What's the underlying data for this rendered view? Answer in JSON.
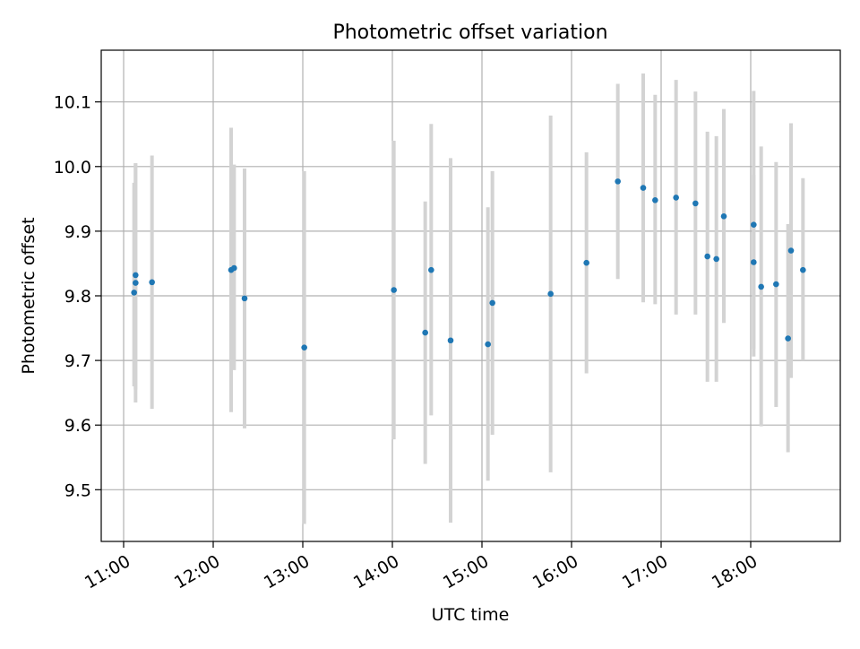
{
  "chart_data": {
    "type": "scatter",
    "title": "Photometric offset variation",
    "xlabel": "UTC time",
    "ylabel": "Photometric offset",
    "x_axis_kind": "time",
    "xlim": [
      "10:45",
      "19:00"
    ],
    "ylim": [
      9.42,
      10.18
    ],
    "x_ticks": [
      "11:00",
      "12:00",
      "13:00",
      "14:00",
      "15:00",
      "16:00",
      "17:00",
      "18:00"
    ],
    "y_ticks": [
      "9.5",
      "9.6",
      "9.7",
      "9.8",
      "9.9",
      "10.0",
      "10.1"
    ],
    "grid": true,
    "legend": "none",
    "colors": {
      "point": "#1f77b4",
      "errorbar": "#d3d3d3",
      "grid": "#b0b0b0"
    },
    "series": [
      {
        "points": [
          {
            "x": "11:07",
            "y": 9.805,
            "err_low": 9.66,
            "err_high": 9.975
          },
          {
            "x": "11:08",
            "y": 9.82,
            "err_low": 9.635,
            "err_high": 10.005
          },
          {
            "x": "11:08",
            "y": 9.832,
            "err_low": 9.655,
            "err_high": 10.005
          },
          {
            "x": "11:19",
            "y": 9.821,
            "err_low": 9.625,
            "err_high": 10.017
          },
          {
            "x": "12:12",
            "y": 9.84,
            "err_low": 9.62,
            "err_high": 10.06
          },
          {
            "x": "12:14",
            "y": 9.843,
            "err_low": 9.685,
            "err_high": 10.003
          },
          {
            "x": "12:21",
            "y": 9.796,
            "err_low": 9.595,
            "err_high": 9.997
          },
          {
            "x": "13:01",
            "y": 9.72,
            "err_low": 9.447,
            "err_high": 9.993
          },
          {
            "x": "14:01",
            "y": 9.809,
            "err_low": 9.578,
            "err_high": 10.04
          },
          {
            "x": "14:22",
            "y": 9.743,
            "err_low": 9.54,
            "err_high": 9.946
          },
          {
            "x": "14:26",
            "y": 9.84,
            "err_low": 9.615,
            "err_high": 10.066
          },
          {
            "x": "14:39",
            "y": 9.731,
            "err_low": 9.449,
            "err_high": 10.013
          },
          {
            "x": "15:04",
            "y": 9.725,
            "err_low": 9.514,
            "err_high": 9.937
          },
          {
            "x": "15:07",
            "y": 9.789,
            "err_low": 9.585,
            "err_high": 9.993
          },
          {
            "x": "15:46",
            "y": 9.803,
            "err_low": 9.527,
            "err_high": 10.079
          },
          {
            "x": "16:10",
            "y": 9.851,
            "err_low": 9.68,
            "err_high": 10.022
          },
          {
            "x": "16:31",
            "y": 9.977,
            "err_low": 9.826,
            "err_high": 10.128
          },
          {
            "x": "16:48",
            "y": 9.967,
            "err_low": 9.79,
            "err_high": 10.144
          },
          {
            "x": "16:56",
            "y": 9.948,
            "err_low": 9.787,
            "err_high": 10.111
          },
          {
            "x": "17:10",
            "y": 9.952,
            "err_low": 9.771,
            "err_high": 10.134
          },
          {
            "x": "17:23",
            "y": 9.943,
            "err_low": 9.771,
            "err_high": 10.116
          },
          {
            "x": "17:31",
            "y": 9.861,
            "err_low": 9.667,
            "err_high": 10.054
          },
          {
            "x": "17:37",
            "y": 9.857,
            "err_low": 9.667,
            "err_high": 10.047
          },
          {
            "x": "17:42",
            "y": 9.923,
            "err_low": 9.758,
            "err_high": 10.089
          },
          {
            "x": "18:02",
            "y": 9.91,
            "err_low": 9.706,
            "err_high": 10.117
          },
          {
            "x": "18:02",
            "y": 9.852,
            "err_low": 9.718,
            "err_high": 9.987
          },
          {
            "x": "18:07",
            "y": 9.814,
            "err_low": 9.598,
            "err_high": 10.031
          },
          {
            "x": "18:17",
            "y": 9.818,
            "err_low": 9.628,
            "err_high": 10.007
          },
          {
            "x": "18:25",
            "y": 9.734,
            "err_low": 9.558,
            "err_high": 9.911
          },
          {
            "x": "18:27",
            "y": 9.87,
            "err_low": 9.673,
            "err_high": 10.067
          },
          {
            "x": "18:35",
            "y": 9.84,
            "err_low": 9.7,
            "err_high": 9.982
          }
        ]
      }
    ]
  }
}
